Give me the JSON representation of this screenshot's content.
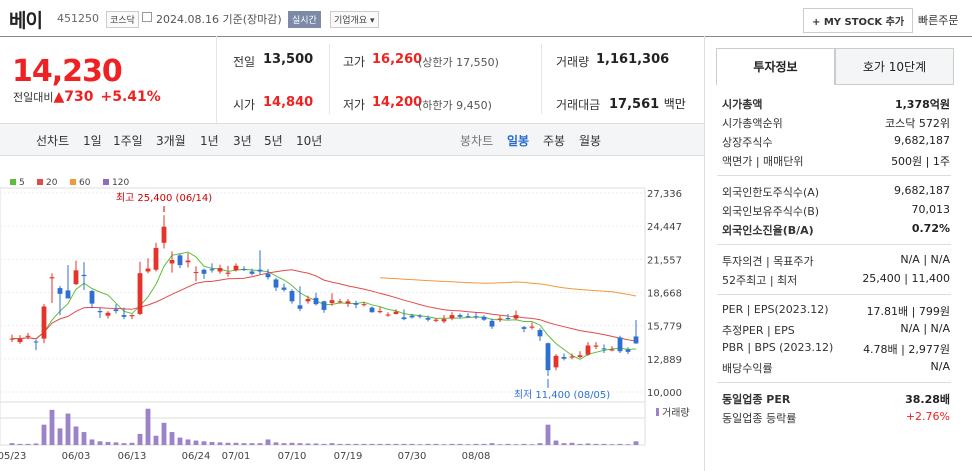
{
  "header": {
    "name": "베이",
    "code": "451250",
    "market": "코스닥",
    "date": "2024.08.16",
    "basis": "기준(장마감)",
    "realtime": "실시간",
    "company_btn": "기업개요",
    "mystock": "+ MY STOCK 추가",
    "quick_order": "빠른주문"
  },
  "price": {
    "current": "14,230",
    "change_label": "전일대비",
    "change": "▲730",
    "change_pct": "+5.41%"
  },
  "summary": {
    "prev_label": "전일",
    "prev": "13,500",
    "high_label": "고가",
    "high": "16,260",
    "high_limit": "(상한가 17,550)",
    "volume_label": "거래량",
    "volume": "1,161,306",
    "open_label": "시가",
    "open": "14,840",
    "low_label": "저가",
    "low": "14,200",
    "low_limit": "(하한가 9,450)",
    "amount_label": "거래대금",
    "amount": "17,561",
    "amount_unit": "백만"
  },
  "periods": {
    "line": "선차트",
    "items": [
      "1일",
      "1주일",
      "3개월",
      "1년",
      "3년",
      "5년",
      "10년"
    ],
    "candle": "봉차트",
    "daily": "일봉",
    "weekly": "주봉",
    "monthly": "월봉"
  },
  "legend": [
    {
      "label": "5",
      "color": "#5bbf3a"
    },
    {
      "label": "20",
      "color": "#e14b4b"
    },
    {
      "label": "60",
      "color": "#f2993a"
    },
    {
      "label": "120",
      "color": "#8f6bc4"
    }
  ],
  "chart_data": {
    "type": "candlestick",
    "y_ticks": [
      "27,336",
      "24,447",
      "21,557",
      "18,668",
      "15,779",
      "12,889",
      "10,000"
    ],
    "ylim": [
      10000,
      27336
    ],
    "x_ticks": [
      "05/23",
      "06/03",
      "06/13",
      "06/24",
      "07/01",
      "07/10",
      "07/19",
      "07/30",
      "08/08"
    ],
    "high_annotation": "최고 25,400 (06/14)",
    "low_annotation": "최저 11,400 (08/05)",
    "volume_label": "거래량",
    "candles": [
      [
        14650,
        14650,
        15000,
        14350
      ],
      [
        14350,
        14650,
        14950,
        14200
      ],
      [
        14800,
        14900,
        15150,
        14600
      ],
      [
        14400,
        14350,
        14550,
        13650
      ],
      [
        14650,
        17450,
        17650,
        14250
      ],
      [
        19900,
        20000,
        20350,
        17750
      ],
      [
        19050,
        18550,
        19250,
        16700
      ],
      [
        18850,
        18150,
        21050,
        18550
      ],
      [
        19400,
        20600,
        21450,
        19300
      ],
      [
        20200,
        20100,
        21300,
        18900
      ],
      [
        18800,
        17700,
        18900,
        17300
      ],
      [
        17050,
        16950,
        17350,
        16450
      ],
      [
        16650,
        16900,
        17050,
        16400
      ],
      [
        17200,
        17050,
        17650,
        16850
      ],
      [
        16700,
        16550,
        17350,
        16350
      ],
      [
        16600,
        16700,
        16750,
        16350
      ],
      [
        16800,
        20350,
        21350,
        16700
      ],
      [
        20500,
        20750,
        21650,
        20350
      ],
      [
        20650,
        22550,
        23000,
        20500
      ],
      [
        23000,
        24400,
        25400,
        22500
      ],
      [
        21200,
        21500,
        22250,
        20400
      ],
      [
        21900,
        21050,
        22050,
        20800
      ],
      [
        21300,
        21450,
        22100,
        20850
      ],
      [
        20400,
        20450,
        20950,
        19650
      ],
      [
        20650,
        20300,
        20750,
        19850
      ],
      [
        20700,
        20600,
        21200,
        20400
      ],
      [
        20500,
        20800,
        21100,
        20300
      ],
      [
        20300,
        20400,
        21000,
        20050
      ],
      [
        20600,
        21000,
        21200,
        20500
      ],
      [
        20700,
        20650,
        20950,
        20550
      ],
      [
        20500,
        20300,
        20750,
        20150
      ],
      [
        20650,
        20500,
        22350,
        20200
      ],
      [
        20300,
        20000,
        20700,
        19800
      ],
      [
        19800,
        19100,
        19950,
        18800
      ],
      [
        19100,
        18900,
        19450,
        18750
      ],
      [
        18800,
        17900,
        18950,
        17700
      ],
      [
        17550,
        17250,
        19200,
        17050
      ],
      [
        17900,
        18100,
        18400,
        17700
      ],
      [
        18200,
        17650,
        18650,
        17550
      ],
      [
        17900,
        17150,
        17950,
        16900
      ],
      [
        17750,
        18000,
        18600,
        17500
      ],
      [
        17900,
        17900,
        18100,
        17700
      ],
      [
        17700,
        17900,
        18100,
        17400
      ],
      [
        17750,
        17600,
        17950,
        17300
      ],
      [
        17650,
        17650,
        17850,
        17450
      ],
      [
        17350,
        16950,
        17450,
        16900
      ],
      [
        16950,
        17050,
        17450,
        16850
      ],
      [
        16700,
        16750,
        16950,
        16550
      ],
      [
        16800,
        17000,
        17200,
        16750
      ],
      [
        16500,
        16350,
        17200,
        16250
      ],
      [
        16650,
        16500,
        16800,
        16400
      ],
      [
        16650,
        16600,
        16800,
        16400
      ],
      [
        16450,
        16300,
        16650,
        16150
      ],
      [
        16200,
        16300,
        16450,
        16100
      ],
      [
        16150,
        16350,
        16700,
        16000
      ],
      [
        16400,
        16700,
        16950,
        16250
      ],
      [
        16700,
        16550,
        16850,
        16400
      ],
      [
        16600,
        16550,
        16850,
        16450
      ],
      [
        16600,
        16500,
        16950,
        16350
      ],
      [
        16550,
        16300,
        16700,
        16200
      ],
      [
        16200,
        15700,
        16400,
        15500
      ],
      [
        16300,
        16400,
        16650,
        16100
      ],
      [
        16450,
        16400,
        16800,
        16250
      ],
      [
        16400,
        16700,
        17100,
        16250
      ],
      [
        15650,
        15500,
        15750,
        15200
      ],
      [
        15600,
        15700,
        16050,
        15450
      ],
      [
        15400,
        14850,
        15550,
        14450
      ],
      [
        14250,
        11900,
        14300,
        11400
      ],
      [
        12150,
        13150,
        13300,
        11900
      ],
      [
        13050,
        12900,
        13350,
        12750
      ],
      [
        13000,
        13100,
        13350,
        12850
      ],
      [
        13050,
        13200,
        13550,
        12950
      ],
      [
        13250,
        14050,
        14350,
        13150
      ],
      [
        13950,
        14050,
        14350,
        13750
      ],
      [
        13800,
        13750,
        14150,
        13400
      ],
      [
        13700,
        13700,
        14000,
        13550
      ],
      [
        14750,
        13550,
        14900,
        13400
      ],
      [
        13700,
        13500,
        13900,
        13300
      ],
      [
        14840,
        14230,
        16260,
        14200
      ]
    ],
    "volumes": [
      0.05,
      0.03,
      0.03,
      0.04,
      0.55,
      0.95,
      0.45,
      0.85,
      0.5,
      0.35,
      0.15,
      0.1,
      0.08,
      0.07,
      0.05,
      0.06,
      0.3,
      0.98,
      0.25,
      0.6,
      0.35,
      0.2,
      0.15,
      0.12,
      0.1,
      0.08,
      0.07,
      0.06,
      0.06,
      0.05,
      0.05,
      0.05,
      0.15,
      0.07,
      0.05,
      0.06,
      0.05,
      0.04,
      0.04,
      0.03,
      0.05,
      0.03,
      0.03,
      0.03,
      0.03,
      0.03,
      0.03,
      0.03,
      0.03,
      0.03,
      0.03,
      0.02,
      0.03,
      0.03,
      0.02,
      0.03,
      0.03,
      0.02,
      0.03,
      0.03,
      0.05,
      0.02,
      0.03,
      0.02,
      0.03,
      0.02,
      0.05,
      0.55,
      0.12,
      0.05,
      0.06,
      0.03,
      0.04,
      0.03,
      0.03,
      0.02,
      0.03,
      0.02,
      0.1
    ]
  },
  "right": {
    "tab1": "투자정보",
    "tab2": "호가 10단계",
    "rows1": [
      {
        "label": "시가총액",
        "value": "1,378억원",
        "bold": true
      },
      {
        "label": "시가총액순위",
        "value": "코스닥 572위"
      },
      {
        "label": "상장주식수",
        "value": "9,682,187"
      },
      {
        "label": "액면가 | 매매단위",
        "value": "500원 | 1주"
      }
    ],
    "rows2": [
      {
        "label": "외국인한도주식수(A)",
        "value": "9,682,187"
      },
      {
        "label": "외국인보유주식수(B)",
        "value": "70,013"
      },
      {
        "label": "외국인소진율(B/A)",
        "value": "0.72%",
        "bold": true
      }
    ],
    "rows3": [
      {
        "label": "투자의견 | 목표주가",
        "value": "N/A | N/A"
      },
      {
        "label": "52주최고 | 최저",
        "value": "25,400 | 11,400"
      }
    ],
    "rows4": [
      {
        "label": "PER | EPS(2023.12)",
        "value": "17.81배 | 799원"
      },
      {
        "label": "추정PER | EPS",
        "value": "N/A | N/A"
      },
      {
        "label": "PBR | BPS (2023.12)",
        "value": "4.78배 | 2,977원"
      },
      {
        "label": "배당수익률",
        "value": "N/A"
      }
    ],
    "rows5": [
      {
        "label": "동일업종 PER",
        "value": "38.28배",
        "bold": true
      },
      {
        "label": "동일업종 등락률",
        "value": "+2.76%",
        "red": true
      }
    ]
  }
}
